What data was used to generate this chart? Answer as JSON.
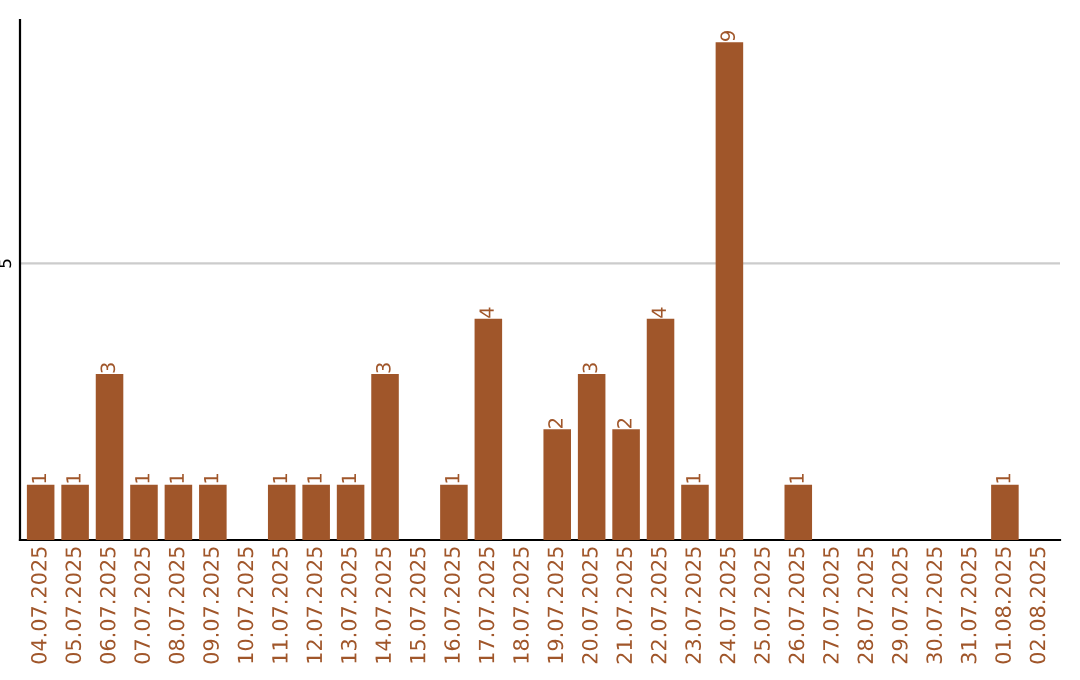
{
  "chart_data": {
    "type": "bar",
    "categories": [
      "04.07.2025",
      "05.07.2025",
      "06.07.2025",
      "07.07.2025",
      "08.07.2025",
      "09.07.2025",
      "10.07.2025",
      "11.07.2025",
      "12.07.2025",
      "13.07.2025",
      "14.07.2025",
      "15.07.2025",
      "16.07.2025",
      "17.07.2025",
      "18.07.2025",
      "19.07.2025",
      "20.07.2025",
      "21.07.2025",
      "22.07.2025",
      "23.07.2025",
      "24.07.2025",
      "25.07.2025",
      "26.07.2025",
      "27.07.2025",
      "28.07.2025",
      "29.07.2025",
      "30.07.2025",
      "31.07.2025",
      "01.08.2025",
      "02.08.2025"
    ],
    "values": [
      1,
      1,
      3,
      1,
      1,
      1,
      0,
      1,
      1,
      1,
      3,
      0,
      1,
      4,
      0,
      2,
      3,
      2,
      4,
      1,
      9,
      0,
      1,
      0,
      0,
      0,
      0,
      0,
      1,
      0
    ],
    "value_labels": [
      "1",
      "1",
      "3",
      "1",
      "1",
      "1",
      null,
      "1",
      "1",
      "1",
      "3",
      null,
      "1",
      "4",
      null,
      "2",
      "3",
      "2",
      "4",
      "1",
      "9",
      null,
      "1",
      null,
      null,
      null,
      null,
      null,
      "1",
      null
    ],
    "color": "#a0562a",
    "ylim": [
      0,
      9.4
    ],
    "yticks": [
      5
    ],
    "grid": "y"
  }
}
